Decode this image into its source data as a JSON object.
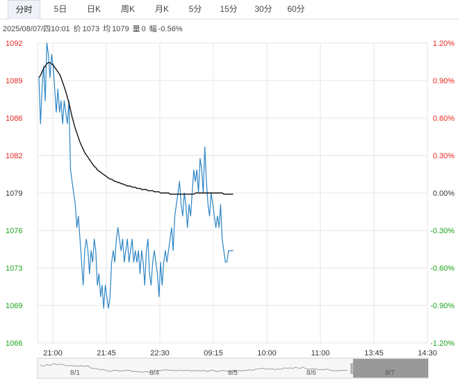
{
  "tabs": [
    {
      "label": "分时",
      "active": true
    },
    {
      "label": "5日",
      "active": false
    },
    {
      "label": "日K",
      "active": false
    },
    {
      "label": "周K",
      "active": false
    },
    {
      "label": "月K",
      "active": false
    },
    {
      "label": "5分",
      "active": false
    },
    {
      "label": "15分",
      "active": false
    },
    {
      "label": "30分",
      "active": false
    },
    {
      "label": "60分",
      "active": false
    }
  ],
  "info": {
    "datetime": "2025/08/07/四10:01",
    "price_label": "价",
    "price": "1073",
    "avg_label": "均",
    "avg": "1079",
    "volume_label": "量",
    "volume": "0",
    "change_label": "幅",
    "change": "-0.56%"
  },
  "colors": {
    "up": "#e8251e",
    "down": "#1aa31a",
    "flat": "#333333",
    "price_line": "#2a84c4",
    "avg_line": "#111111",
    "grid": "#e6e6e6"
  },
  "chart_data": {
    "type": "line",
    "prev_close": 1079,
    "ylim": [
      1066,
      1092
    ],
    "ytick_labels_left": [
      "1092",
      "1089",
      "1086",
      "1082",
      "1079",
      "1076",
      "1073",
      "1069",
      "1066"
    ],
    "ytick_labels_right": [
      "1.20%",
      "0.90%",
      "0.60%",
      "0.30%",
      "0.00%",
      "-0.30%",
      "-0.60%",
      "-0.90%",
      "-1.20%"
    ],
    "xtick_labels": [
      "21:00",
      "21:45",
      "22:30",
      "09:15",
      "10:00",
      "11:00",
      "13:45",
      "14:30"
    ],
    "series": [
      {
        "values": [
          1089,
          1085,
          1088,
          1090,
          1087,
          1092,
          1091,
          1089,
          1091,
          1090,
          1088,
          1086,
          1088,
          1086,
          1087,
          1085,
          1087,
          1086,
          1085,
          1087,
          1081,
          1080,
          1079,
          1078,
          1076,
          1077,
          1075,
          1073,
          1071,
          1074,
          1075,
          1074,
          1072,
          1074,
          1073,
          1075,
          1074,
          1071,
          1072,
          1070,
          1071,
          1069,
          1071,
          1070,
          1069,
          1070,
          1073,
          1074,
          1073,
          1075,
          1076,
          1075,
          1074,
          1075,
          1073,
          1074,
          1075,
          1073,
          1074,
          1075,
          1073,
          1074,
          1073,
          1074,
          1072,
          1074,
          1073,
          1071,
          1074,
          1075,
          1072,
          1071,
          1073,
          1074,
          1073,
          1072,
          1070,
          1073,
          1071,
          1073,
          1074,
          1073,
          1074,
          1075,
          1076,
          1074,
          1077,
          1078,
          1079,
          1080,
          1078,
          1077,
          1079,
          1078,
          1076,
          1078,
          1077,
          1079,
          1081,
          1080,
          1081,
          1079,
          1082,
          1081,
          1079,
          1083,
          1080,
          1078,
          1077,
          1079,
          1078,
          1077,
          1076,
          1077,
          1076,
          1078,
          1075,
          1074,
          1073,
          1073,
          1074,
          1074,
          1074,
          1074
        ]
      },
      {
        "values": [
          1089.0,
          1089.2,
          1089.5,
          1089.8,
          1090.0,
          1090.2,
          1090.3,
          1090.3,
          1090.2,
          1090.1,
          1089.9,
          1089.7,
          1089.5,
          1089.3,
          1089.0,
          1088.6,
          1088.2,
          1087.8,
          1087.3,
          1086.8,
          1086.2,
          1085.6,
          1085.1,
          1084.6,
          1084.2,
          1083.8,
          1083.4,
          1083.1,
          1082.8,
          1082.5,
          1082.3,
          1082.1,
          1081.9,
          1081.7,
          1081.5,
          1081.3,
          1081.2,
          1081.0,
          1080.9,
          1080.8,
          1080.7,
          1080.6,
          1080.5,
          1080.4,
          1080.3,
          1080.2,
          1080.2,
          1080.1,
          1080.0,
          1080.0,
          1079.9,
          1079.9,
          1079.8,
          1079.8,
          1079.7,
          1079.7,
          1079.6,
          1079.6,
          1079.6,
          1079.5,
          1079.5,
          1079.5,
          1079.4,
          1079.4,
          1079.4,
          1079.3,
          1079.3,
          1079.3,
          1079.3,
          1079.2,
          1079.2,
          1079.2,
          1079.2,
          1079.1,
          1079.1,
          1079.1,
          1079.1,
          1079.0,
          1079.0,
          1079.0,
          1079.0,
          1079.0,
          1079.0,
          1078.9,
          1078.9,
          1078.9,
          1078.9,
          1078.9,
          1078.9,
          1078.9,
          1078.9,
          1078.9,
          1078.9,
          1078.9,
          1078.9,
          1078.9,
          1078.9,
          1078.9,
          1078.9,
          1079.0,
          1079.0,
          1079.0,
          1079.0,
          1079.0,
          1079.0,
          1079.0,
          1079.0,
          1079.0,
          1079.0,
          1079.0,
          1079.0,
          1079.0,
          1079.0,
          1079.0,
          1079.0,
          1079.0,
          1079.0,
          1078.9,
          1078.9,
          1078.9,
          1078.9,
          1078.9,
          1078.9,
          1078.9
        ]
      }
    ],
    "total_points": 246,
    "grid": true
  },
  "navigator": {
    "labels": [
      "8/1",
      "8/4",
      "8/5",
      "8/6",
      "8/7"
    ],
    "selected_label": "8/7"
  }
}
